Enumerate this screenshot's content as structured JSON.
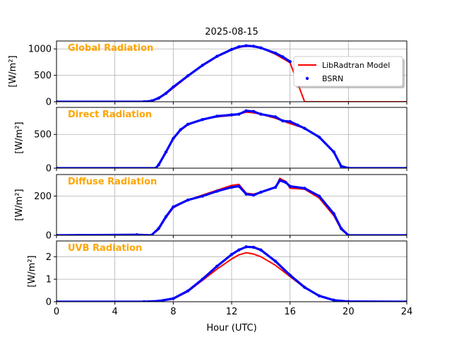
{
  "figure": {
    "title": "2025-08-15",
    "xlabel": "Hour (UTC)",
    "legend": {
      "placement": "top-right",
      "entries": [
        {
          "label": "LibRadtran Model",
          "color": "#ff0000",
          "marker": "line"
        },
        {
          "label": "BSRN",
          "color": "#0000ff",
          "marker": "dot"
        }
      ]
    },
    "colors": {
      "model": "#ff0000",
      "obs": "#0000ff",
      "panel_title": "#ffa500",
      "grid": "#b0b0b0"
    }
  },
  "chart_data": [
    {
      "type": "line",
      "title": "Global Radiation",
      "ylabel": "[W/m²]",
      "xlim": [
        0,
        24
      ],
      "ylim": [
        0,
        1150
      ],
      "xticks": [
        0,
        4,
        8,
        12,
        16,
        20,
        24
      ],
      "xtick_labels": [
        "0",
        "4",
        "8",
        "12",
        "16",
        "20",
        "24"
      ],
      "yticks": [
        0,
        500,
        1000
      ],
      "ytick_labels": [
        "0",
        "500",
        "1000"
      ],
      "grid": true,
      "series": [
        {
          "name": "LibRadtran Model",
          "style": "line",
          "x": [
            0,
            6,
            6.5,
            7,
            7.5,
            8,
            9,
            10,
            11,
            12,
            12.5,
            13,
            13.5,
            14,
            15,
            16,
            17,
            18,
            19,
            19.5,
            20,
            24
          ],
          "y": [
            0,
            0,
            10,
            60,
            150,
            260,
            480,
            680,
            850,
            980,
            1030,
            1050,
            1045,
            1020,
            900,
            740,
            0,
            0,
            0,
            0,
            0,
            0
          ]
        },
        {
          "name": "BSRN",
          "style": "dots",
          "x": [
            0,
            6,
            6.5,
            7,
            7.5,
            8,
            9,
            10,
            11,
            12,
            12.5,
            13,
            13.5,
            14,
            15,
            15.5,
            16
          ],
          "y": [
            0,
            0,
            15,
            70,
            160,
            280,
            490,
            690,
            860,
            990,
            1040,
            1060,
            1050,
            1020,
            920,
            850,
            760
          ]
        }
      ]
    },
    {
      "type": "line",
      "title": "Direct Radiation",
      "ylabel": "[W/m²]",
      "xlim": [
        0,
        24
      ],
      "ylim": [
        0,
        900
      ],
      "xticks": [
        0,
        4,
        8,
        12,
        16,
        20,
        24
      ],
      "yticks": [
        0,
        500
      ],
      "ytick_labels": [
        "0",
        "500"
      ],
      "grid": true,
      "series": [
        {
          "name": "LibRadtran Model",
          "style": "line",
          "x": [
            0,
            6.8,
            7,
            7.5,
            8,
            8.5,
            9,
            10,
            11,
            12,
            12.5,
            13,
            13.5,
            14,
            15,
            16,
            17,
            18,
            19,
            19.5,
            20,
            24
          ],
          "y": [
            0,
            0,
            40,
            230,
            430,
            560,
            640,
            720,
            760,
            780,
            800,
            830,
            820,
            800,
            740,
            660,
            590,
            460,
            240,
            30,
            0,
            0
          ]
        },
        {
          "name": "BSRN",
          "style": "dots",
          "x": [
            0,
            6.8,
            7,
            7.5,
            8,
            8.5,
            9,
            10,
            11,
            12,
            12.5,
            13,
            13.5,
            14,
            15,
            15.5,
            16,
            16.5,
            17,
            18,
            19,
            19.5,
            20,
            24
          ],
          "y": [
            0,
            0,
            50,
            240,
            440,
            570,
            650,
            720,
            770,
            790,
            800,
            850,
            840,
            800,
            760,
            700,
            690,
            640,
            590,
            460,
            240,
            30,
            0,
            0
          ]
        }
      ]
    },
    {
      "type": "line",
      "title": "Diffuse Radiation",
      "ylabel": "[W/m²]",
      "xlim": [
        0,
        24
      ],
      "ylim": [
        0,
        310
      ],
      "xticks": [
        0,
        4,
        8,
        12,
        16,
        20,
        24
      ],
      "yticks": [
        0,
        200
      ],
      "ytick_labels": [
        "0",
        "200"
      ],
      "grid": true,
      "series": [
        {
          "name": "LibRadtran Model",
          "style": "line",
          "x": [
            0,
            6.5,
            7,
            7.5,
            8,
            9,
            10,
            11,
            12,
            12.5,
            13,
            13.5,
            14,
            15,
            15.3,
            15.7,
            16,
            17,
            18,
            19,
            19.5,
            20,
            24
          ],
          "y": [
            0,
            0,
            30,
            90,
            140,
            180,
            205,
            230,
            255,
            260,
            215,
            210,
            220,
            245,
            290,
            275,
            240,
            235,
            190,
            100,
            30,
            0,
            0
          ]
        },
        {
          "name": "BSRN",
          "style": "dots",
          "x": [
            0,
            5.5,
            6.5,
            7,
            7.5,
            8,
            9,
            10,
            11,
            12,
            12.5,
            13,
            13.5,
            14,
            15,
            15.3,
            15.7,
            16,
            17,
            18,
            19,
            19.5,
            20,
            24
          ],
          "y": [
            0,
            3,
            0,
            35,
            95,
            145,
            180,
            200,
            225,
            245,
            250,
            210,
            205,
            220,
            245,
            280,
            270,
            250,
            240,
            200,
            110,
            35,
            0,
            0
          ]
        }
      ]
    },
    {
      "type": "line",
      "title": "UVB Radiation",
      "ylabel": "[W/m²]",
      "xlim": [
        0,
        24
      ],
      "ylim": [
        0,
        2.7
      ],
      "xticks": [
        0,
        4,
        8,
        12,
        16,
        20,
        24
      ],
      "xtick_labels": [
        "0",
        "4",
        "8",
        "12",
        "16",
        "20",
        "24"
      ],
      "yticks": [
        0,
        1,
        2
      ],
      "ytick_labels": [
        "0",
        "1",
        "2"
      ],
      "grid": true,
      "series": [
        {
          "name": "LibRadtran Model",
          "style": "line",
          "x": [
            0,
            6,
            7,
            8,
            9,
            10,
            11,
            12,
            12.5,
            13,
            13.5,
            14,
            15,
            16,
            17,
            18,
            19,
            20,
            24
          ],
          "y": [
            0,
            0,
            0.02,
            0.12,
            0.45,
            0.95,
            1.45,
            1.9,
            2.08,
            2.18,
            2.12,
            2.0,
            1.62,
            1.12,
            0.62,
            0.25,
            0.06,
            0.01,
            0
          ]
        },
        {
          "name": "BSRN",
          "style": "dots",
          "x": [
            0,
            6,
            7,
            8,
            9,
            10,
            11,
            12,
            12.5,
            13,
            13.5,
            14,
            15,
            16,
            17,
            18,
            19,
            20,
            24
          ],
          "y": [
            0,
            0,
            0.03,
            0.14,
            0.48,
            1.0,
            1.58,
            2.1,
            2.3,
            2.44,
            2.42,
            2.3,
            1.8,
            1.18,
            0.64,
            0.26,
            0.07,
            0.01,
            0
          ]
        }
      ]
    }
  ]
}
